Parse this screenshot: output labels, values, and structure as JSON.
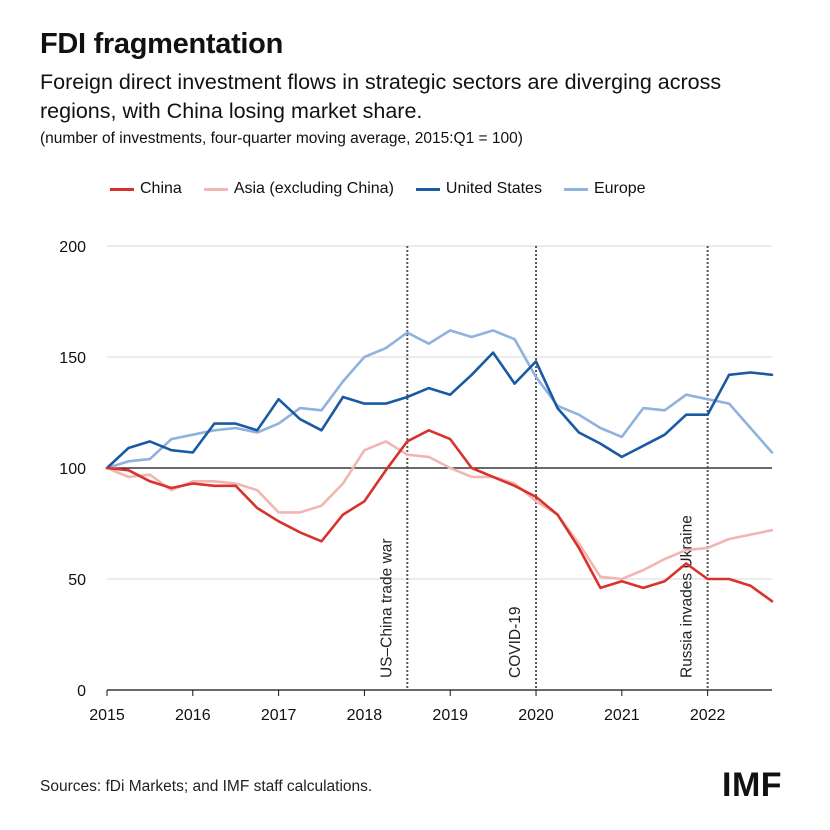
{
  "header": {
    "title": "FDI fragmentation",
    "subtitle": "Foreign direct investment flows in strategic sectors are diverging across regions, with China losing market share.",
    "note": "(number of investments, four-quarter moving average, 2015:Q1 = 100)"
  },
  "footer": {
    "source": "Sources: fDi Markets; and IMF staff calculations.",
    "logo": "IMF"
  },
  "chart_data": {
    "type": "line",
    "title": "FDI fragmentation",
    "x_unit": "year (quarterly)",
    "xlim": [
      2015,
      2022.75
    ],
    "ylim": [
      0,
      200
    ],
    "x_ticks": [
      2015,
      2016,
      2017,
      2018,
      2019,
      2020,
      2021,
      2022
    ],
    "y_ticks": [
      0,
      50,
      100,
      150,
      200
    ],
    "grid": "horizontal",
    "baseline": 100,
    "legend_position": "top",
    "x": [
      2015.0,
      2015.25,
      2015.5,
      2015.75,
      2016.0,
      2016.25,
      2016.5,
      2016.75,
      2017.0,
      2017.25,
      2017.5,
      2017.75,
      2018.0,
      2018.25,
      2018.5,
      2018.75,
      2019.0,
      2019.25,
      2019.5,
      2019.75,
      2020.0,
      2020.25,
      2020.5,
      2020.75,
      2021.0,
      2021.25,
      2021.5,
      2021.75,
      2022.0,
      2022.25,
      2022.5,
      2022.75
    ],
    "series": [
      {
        "name": "China",
        "color": "#d7332c",
        "values": [
          100,
          99,
          94,
          91,
          93,
          92,
          92,
          82,
          76,
          71,
          67,
          79,
          85,
          99,
          112,
          117,
          113,
          100,
          96,
          92,
          87,
          79,
          64,
          46,
          49,
          46,
          49,
          57,
          50,
          50,
          47,
          40
        ]
      },
      {
        "name": "Asia (excluding China)",
        "color": "#f2b6b2",
        "values": [
          100,
          96,
          97,
          90,
          94,
          94,
          93,
          90,
          80,
          80,
          83,
          93,
          108,
          112,
          106,
          105,
          100,
          96,
          96,
          93,
          85,
          79,
          66,
          51,
          50,
          54,
          59,
          63,
          64,
          68,
          70,
          72
        ]
      },
      {
        "name": "United States",
        "color": "#1a5aa2",
        "values": [
          100,
          109,
          112,
          108,
          107,
          120,
          120,
          117,
          131,
          122,
          117,
          132,
          129,
          129,
          132,
          136,
          133,
          142,
          152,
          138,
          148,
          127,
          116,
          111,
          105,
          110,
          115,
          124,
          124,
          142,
          143,
          142
        ]
      },
      {
        "name": "Europe",
        "color": "#8fb3dc",
        "values": [
          100,
          103,
          104,
          113,
          115,
          117,
          118,
          116,
          120,
          127,
          126,
          139,
          150,
          154,
          161,
          156,
          162,
          159,
          162,
          158,
          141,
          128,
          124,
          118,
          114,
          127,
          126,
          133,
          131,
          129,
          118,
          107
        ]
      }
    ],
    "events": [
      {
        "x": 2018.5,
        "label": "US–China trade war"
      },
      {
        "x": 2020.0,
        "label": "COVID-19"
      },
      {
        "x": 2022.0,
        "label": "Russia invades Ukraine"
      }
    ]
  }
}
